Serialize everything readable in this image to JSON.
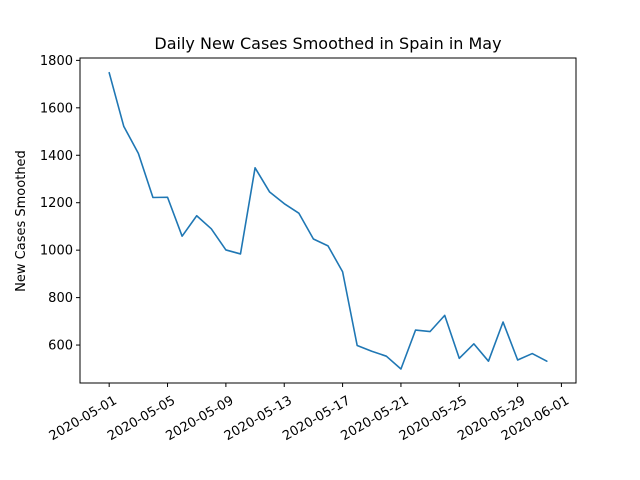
{
  "chart_data": {
    "type": "line",
    "title": "Daily New Cases Smoothed in Spain in May",
    "xlabel": "",
    "ylabel": "New Cases Smoothed",
    "x": [
      "2020-05-01",
      "2020-05-02",
      "2020-05-03",
      "2020-05-04",
      "2020-05-05",
      "2020-05-06",
      "2020-05-07",
      "2020-05-08",
      "2020-05-09",
      "2020-05-10",
      "2020-05-11",
      "2020-05-12",
      "2020-05-13",
      "2020-05-14",
      "2020-05-15",
      "2020-05-16",
      "2020-05-17",
      "2020-05-18",
      "2020-05-19",
      "2020-05-20",
      "2020-05-21",
      "2020-05-22",
      "2020-05-23",
      "2020-05-24",
      "2020-05-25",
      "2020-05-26",
      "2020-05-27",
      "2020-05-28",
      "2020-05-29",
      "2020-05-30",
      "2020-05-31"
    ],
    "series": [
      {
        "color": "#1f77b4",
        "values": [
          1748,
          1522,
          1408,
          1222,
          1223,
          1059,
          1145,
          1090,
          1001,
          984,
          1347,
          1245,
          1196,
          1156,
          1047,
          1018,
          909,
          598,
          574,
          553,
          499,
          663,
          657,
          725,
          544,
          605,
          532,
          697,
          537,
          564,
          532
        ]
      }
    ],
    "xlim": [
      "2020-04-29",
      "2020-06-02"
    ],
    "ylim": [
      440,
      1810
    ],
    "xticks": [
      "2020-05-01",
      "2020-05-05",
      "2020-05-09",
      "2020-05-13",
      "2020-05-17",
      "2020-05-21",
      "2020-05-25",
      "2020-05-29",
      "2020-06-01"
    ],
    "yticks": [
      600,
      800,
      1000,
      1200,
      1400,
      1600,
      1800
    ],
    "ytick_labels": [
      "600",
      "800",
      "1000",
      "1200",
      "1400",
      "1600",
      "1800"
    ],
    "grid": false,
    "legend": "none"
  }
}
